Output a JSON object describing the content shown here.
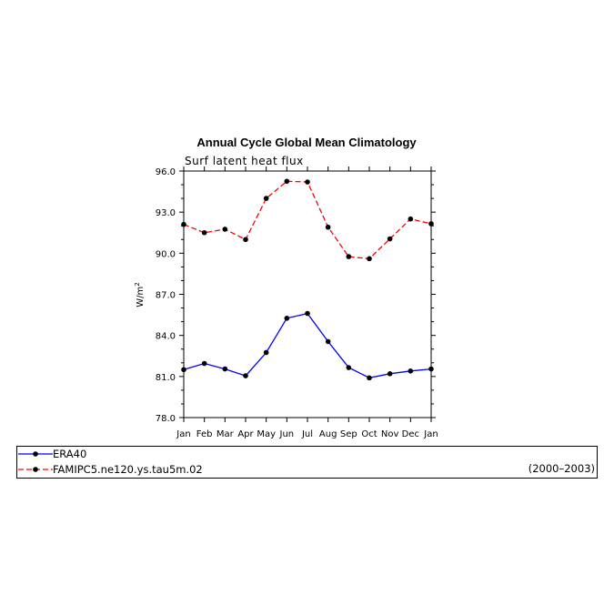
{
  "chart_data": {
    "type": "line",
    "title": "Annual Cycle Global Mean Climatology",
    "subtitle": "Surf latent heat flux",
    "ylabel": "W/m",
    "ylabel_superscript": "2",
    "xlabel": "",
    "categories": [
      "Jan",
      "Feb",
      "Mar",
      "Apr",
      "May",
      "Jun",
      "Jul",
      "Aug",
      "Sep",
      "Oct",
      "Nov",
      "Dec",
      "Jan"
    ],
    "ylim": [
      78.0,
      96.0
    ],
    "yticks": [
      "78.0",
      "81.0",
      "84.0",
      "87.0",
      "90.0",
      "93.0",
      "96.0"
    ],
    "grid": false,
    "series": [
      {
        "name": "ERA40",
        "color": "#0000ff",
        "dash": "solid",
        "values": [
          81.5,
          81.95,
          81.55,
          81.05,
          82.75,
          85.25,
          85.6,
          83.55,
          81.65,
          80.9,
          81.2,
          81.4,
          81.55
        ]
      },
      {
        "name": "FAMIPC5.ne120.ys.tau5m.02",
        "color": "#ff0000",
        "dash": "dashed",
        "values": [
          92.1,
          91.5,
          91.75,
          91.0,
          94.0,
          95.25,
          95.2,
          91.9,
          89.75,
          89.6,
          91.05,
          92.5,
          92.15
        ]
      }
    ],
    "period_label": "(2000–2003)",
    "legend_position": "bottom"
  }
}
